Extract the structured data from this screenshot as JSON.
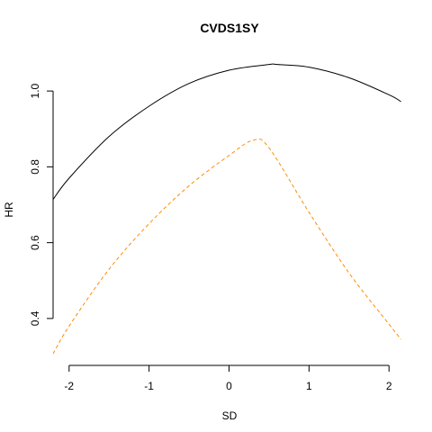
{
  "chart_data": {
    "type": "line",
    "title": "CVDS1SY",
    "xlabel": "SD",
    "ylabel": "HR",
    "xlim": [
      -2.2,
      2.2
    ],
    "ylim": [
      0.3,
      1.1
    ],
    "x_ticks": [
      "-2",
      "-1",
      "0",
      "1",
      "2"
    ],
    "y_ticks": [
      "0.4",
      "0.6",
      "0.8",
      "1.0"
    ],
    "grid": false,
    "series": [
      {
        "color": "#000000",
        "dash": "solid",
        "x": [
          -2.2,
          -2.0,
          -1.5,
          -1.0,
          -0.5,
          0.0,
          0.5,
          0.6,
          1.0,
          1.5,
          2.0,
          2.15
        ],
        "y": [
          0.714,
          0.77,
          0.88,
          0.96,
          1.02,
          1.055,
          1.07,
          1.07,
          1.063,
          1.035,
          0.99,
          0.972
        ]
      },
      {
        "color": "#FF8C00",
        "dash": "dashed",
        "x": [
          -2.2,
          -2.0,
          -1.5,
          -1.0,
          -0.5,
          0.0,
          0.3,
          0.5,
          1.0,
          1.5,
          2.0,
          2.15
        ],
        "y": [
          0.307,
          0.38,
          0.53,
          0.65,
          0.75,
          0.83,
          0.87,
          0.85,
          0.68,
          0.52,
          0.385,
          0.345
        ]
      }
    ]
  }
}
